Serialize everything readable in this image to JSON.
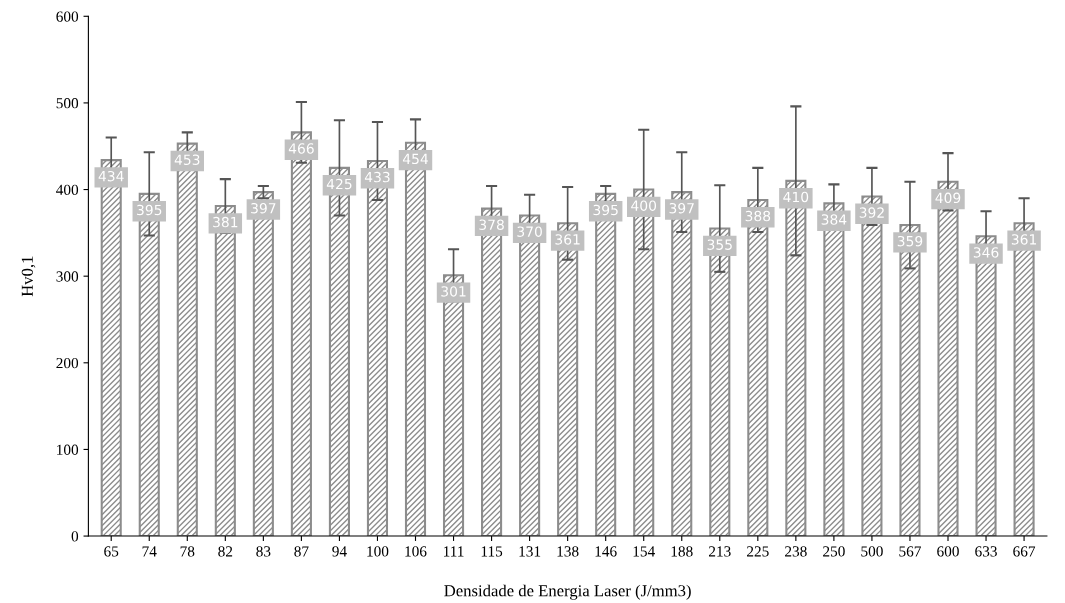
{
  "chart_data": {
    "type": "bar",
    "xlabel": "Densidade de Energia Laser (J/mm3)",
    "ylabel": "Hv0,1",
    "categories": [
      "65",
      "74",
      "78",
      "82",
      "83",
      "87",
      "94",
      "100",
      "106",
      "111",
      "115",
      "131",
      "138",
      "146",
      "154",
      "188",
      "213",
      "225",
      "238",
      "250",
      "500",
      "567",
      "600",
      "633",
      "667"
    ],
    "values": [
      434,
      395,
      453,
      381,
      397,
      466,
      425,
      433,
      454,
      301,
      378,
      370,
      361,
      395,
      400,
      397,
      355,
      388,
      410,
      384,
      392,
      359,
      409,
      346,
      361
    ],
    "errors": [
      26,
      48,
      13,
      31,
      7,
      35,
      55,
      45,
      27,
      30,
      26,
      24,
      42,
      9,
      69,
      46,
      50,
      37,
      86,
      22,
      33,
      50,
      33,
      29,
      29
    ],
    "color": "#8c8c8c",
    "data_labels": true,
    "ylim": [
      0,
      600
    ],
    "yticks": [
      0,
      100,
      200,
      300,
      400,
      500,
      600
    ],
    "grid": false,
    "legend": false
  }
}
